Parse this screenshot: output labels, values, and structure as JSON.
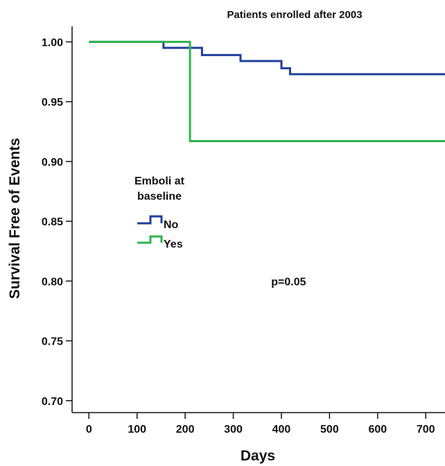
{
  "chart_data": {
    "type": "line",
    "title": "Patients enrolled after 2003",
    "xlabel": "Days",
    "ylabel": "Survival Free of Events",
    "xlim": [
      -35,
      740
    ],
    "ylim": [
      0.69,
      1.013
    ],
    "xticks": [
      0,
      100,
      200,
      300,
      400,
      500,
      600,
      700
    ],
    "yticks": [
      0.7,
      0.75,
      0.8,
      0.85,
      0.9,
      0.95,
      1.0
    ],
    "ytick_labels": [
      "0.70",
      "0.75",
      "0.80",
      "0.85",
      "0.90",
      "0.95",
      "1.00"
    ],
    "grid": false,
    "legend": {
      "title_lines": [
        "Emboli at",
        "baseline"
      ],
      "placement": "left-middle"
    },
    "series": [
      {
        "name": "No",
        "color": "#1f3f99",
        "step": "post",
        "x": [
          0,
          155,
          235,
          315,
          400,
          418,
          740
        ],
        "y": [
          1.0,
          0.995,
          0.989,
          0.984,
          0.978,
          0.973,
          0.973
        ]
      },
      {
        "name": "Yes",
        "color": "#2db34a",
        "step": "post",
        "x": [
          0,
          210,
          740
        ],
        "y": [
          1.0,
          0.917,
          0.917
        ]
      }
    ],
    "annotations": [
      {
        "text": "p=0.05",
        "x": 415,
        "y": 0.8
      }
    ]
  }
}
